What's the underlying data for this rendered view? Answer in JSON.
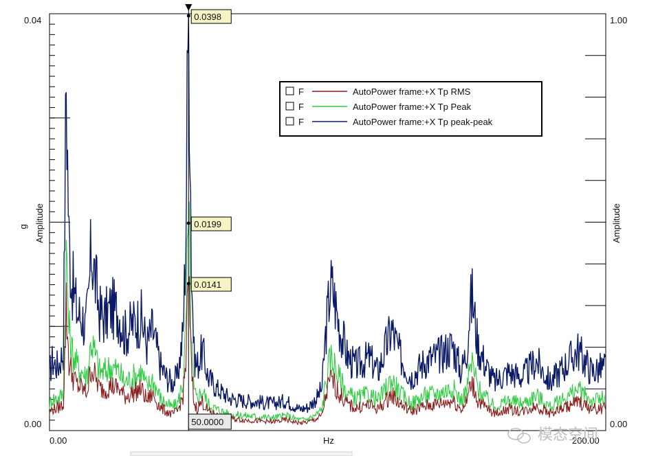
{
  "chart_data": {
    "type": "line",
    "xlabel": "Hz",
    "ylabel_left": [
      "g",
      "Amplitude"
    ],
    "ylabel_right": "Amplitude",
    "xlim": [
      0,
      200
    ],
    "ylim_left": [
      0,
      0.04
    ],
    "ylim_right": [
      0,
      1.0
    ],
    "x_tick_labels": [
      "0.00",
      "200.00"
    ],
    "y_left_tick_labels": [
      "0.00",
      "0.04"
    ],
    "y_right_tick_labels": [
      "0.00",
      "1.00"
    ],
    "grid": false,
    "legend_position": "top-right",
    "legend": [
      {
        "flag": "F",
        "name": "AutoPower frame:+X  Tp RMS",
        "color": "#8b1a1a"
      },
      {
        "flag": "F",
        "name": "AutoPower frame:+X  Tp Peak",
        "color": "#2ecc40"
      },
      {
        "flag": "F",
        "name": "AutoPower frame:+X  Tp peak-peak",
        "color": "#0b1a66"
      }
    ],
    "cursor": {
      "x": 50.0,
      "label": "50.0000"
    },
    "peak_markers": [
      {
        "label": "0.0398",
        "value": 0.0398
      },
      {
        "label": "0.0199",
        "value": 0.0199
      },
      {
        "label": "0.0141",
        "value": 0.0141
      }
    ],
    "envelope_x": [
      0,
      1,
      3,
      5,
      6,
      7,
      8,
      10,
      12,
      13,
      14,
      15,
      18,
      20,
      22,
      25,
      27,
      30,
      33,
      35,
      37,
      40,
      42,
      44,
      46,
      47,
      48,
      49,
      49.5,
      50,
      50.5,
      51,
      52,
      53,
      55,
      57,
      60,
      65,
      70,
      75,
      80,
      85,
      90,
      93,
      96,
      98,
      99,
      100,
      101,
      102,
      104,
      107,
      110,
      115,
      118,
      120,
      123,
      126,
      130,
      135,
      140,
      145,
      148,
      150,
      151,
      152,
      154,
      157,
      160,
      165,
      170,
      175,
      180,
      185,
      190,
      195,
      200
    ],
    "series": [
      {
        "name": "AutoPower frame:+X  Tp peak-peak",
        "color": "#0b1a66",
        "values": [
          0.0055,
          0.0065,
          0.006,
          0.0075,
          0.033,
          0.018,
          0.014,
          0.011,
          0.0105,
          0.0095,
          0.012,
          0.017,
          0.011,
          0.0105,
          0.0115,
          0.011,
          0.009,
          0.01,
          0.0105,
          0.008,
          0.0095,
          0.006,
          0.005,
          0.0045,
          0.005,
          0.007,
          0.009,
          0.018,
          0.03,
          0.0398,
          0.03,
          0.016,
          0.007,
          0.006,
          0.0075,
          0.005,
          0.004,
          0.003,
          0.0028,
          0.0027,
          0.0025,
          0.0028,
          0.002,
          0.0022,
          0.003,
          0.004,
          0.008,
          0.011,
          0.0135,
          0.013,
          0.01,
          0.007,
          0.006,
          0.0068,
          0.0055,
          0.007,
          0.0095,
          0.007,
          0.005,
          0.0065,
          0.007,
          0.008,
          0.0055,
          0.0075,
          0.011,
          0.0125,
          0.008,
          0.006,
          0.0045,
          0.0055,
          0.005,
          0.0065,
          0.0045,
          0.006,
          0.0075,
          0.0055,
          0.006
        ]
      },
      {
        "name": "AutoPower frame:+X  Tp Peak",
        "color": "#2ecc40",
        "values": [
          0.0025,
          0.003,
          0.003,
          0.0035,
          0.0165,
          0.0095,
          0.0075,
          0.006,
          0.0055,
          0.005,
          0.006,
          0.0085,
          0.0055,
          0.0055,
          0.006,
          0.0055,
          0.0045,
          0.005,
          0.0055,
          0.004,
          0.0048,
          0.003,
          0.0025,
          0.0022,
          0.0025,
          0.0035,
          0.0045,
          0.009,
          0.015,
          0.0199,
          0.015,
          0.008,
          0.0035,
          0.003,
          0.0038,
          0.0025,
          0.002,
          0.0015,
          0.0014,
          0.0013,
          0.0012,
          0.0014,
          0.001,
          0.0011,
          0.0015,
          0.002,
          0.004,
          0.0055,
          0.0067,
          0.0065,
          0.005,
          0.0035,
          0.003,
          0.0034,
          0.0028,
          0.0035,
          0.0048,
          0.0035,
          0.0025,
          0.0033,
          0.0035,
          0.004,
          0.0028,
          0.0038,
          0.0055,
          0.0062,
          0.004,
          0.003,
          0.0022,
          0.0028,
          0.0025,
          0.0033,
          0.0022,
          0.003,
          0.0038,
          0.0028,
          0.003
        ]
      },
      {
        "name": "AutoPower frame:+X  Tp RMS",
        "color": "#8b1a1a",
        "values": [
          0.0017,
          0.002,
          0.0021,
          0.0025,
          0.0115,
          0.0065,
          0.0053,
          0.0042,
          0.0039,
          0.0035,
          0.0042,
          0.006,
          0.0039,
          0.0039,
          0.0042,
          0.0039,
          0.0032,
          0.0035,
          0.0039,
          0.0028,
          0.0034,
          0.0021,
          0.0018,
          0.0015,
          0.0018,
          0.0025,
          0.0032,
          0.0064,
          0.0106,
          0.0141,
          0.0106,
          0.0057,
          0.0025,
          0.0021,
          0.0027,
          0.0018,
          0.0014,
          0.0011,
          0.001,
          0.0009,
          0.0008,
          0.001,
          0.0007,
          0.0008,
          0.0011,
          0.0014,
          0.0028,
          0.0039,
          0.0047,
          0.0046,
          0.0035,
          0.0025,
          0.0021,
          0.0024,
          0.002,
          0.0025,
          0.0034,
          0.0025,
          0.0018,
          0.0023,
          0.0025,
          0.0028,
          0.002,
          0.0027,
          0.0039,
          0.0044,
          0.0028,
          0.0021,
          0.0016,
          0.002,
          0.0018,
          0.0023,
          0.0016,
          0.0021,
          0.0027,
          0.002,
          0.0021
        ]
      }
    ]
  },
  "watermark": "模态空间",
  "watermark_icon": "wechat-icon"
}
